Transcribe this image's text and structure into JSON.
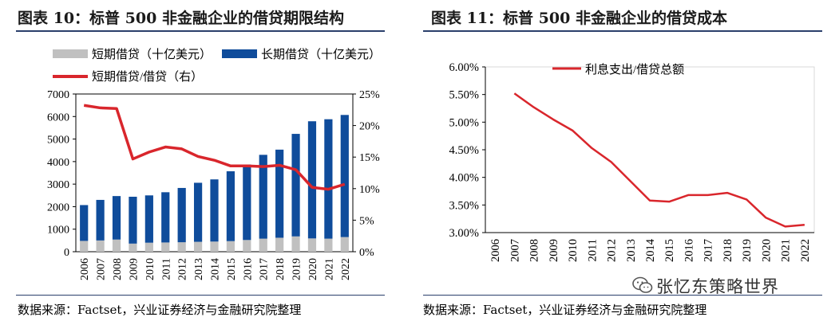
{
  "left": {
    "title": "图表 10：标普 500 非金融企业的借贷期限结构",
    "source": "数据来源：Factset，兴业证券经济与金融研究院整理"
  },
  "right": {
    "title": "图表 11：标普 500 非金融企业的借贷成本",
    "source": "数据来源：Factset，兴业证券经济与金融研究院整理"
  },
  "watermark": {
    "text": "张忆东策略世界",
    "icon": "wechat-icon"
  },
  "chart_data": [
    {
      "type": "bar",
      "stacked": true,
      "categories": [
        "2006",
        "2007",
        "2008",
        "2009",
        "2010",
        "2011",
        "2012",
        "2013",
        "2014",
        "2015",
        "2016",
        "2017",
        "2018",
        "2019",
        "2020",
        "2021",
        "2022"
      ],
      "series": [
        {
          "name": "短期借贷（十亿美元）",
          "color": "#c0c0c0",
          "values": [
            480,
            500,
            540,
            360,
            400,
            410,
            420,
            440,
            450,
            470,
            520,
            580,
            620,
            680,
            590,
            580,
            650
          ]
        },
        {
          "name": "长期借贷（十亿美元）",
          "color": "#0f4c9b",
          "values": [
            1590,
            1800,
            1930,
            2080,
            2100,
            2230,
            2410,
            2620,
            2760,
            3100,
            3350,
            3720,
            3910,
            4550,
            5200,
            5300,
            5420
          ]
        },
        {
          "name": "短期借贷/借贷（右）",
          "axis": "right",
          "type": "line",
          "color": "#d9262c",
          "values": [
            23.2,
            22.8,
            22.7,
            14.7,
            15.8,
            16.6,
            16.3,
            15.1,
            14.5,
            13.6,
            13.6,
            13.5,
            13.7,
            13.0,
            10.2,
            9.9,
            10.7
          ]
        }
      ],
      "yticks": [
        "0",
        "1000",
        "2000",
        "3000",
        "4000",
        "5000",
        "6000",
        "7000"
      ],
      "ylim": [
        0,
        7000
      ],
      "y2ticks": [
        "0%",
        "5%",
        "10%",
        "15%",
        "20%",
        "25%"
      ],
      "y2lim": [
        0,
        25
      ],
      "legend": "top"
    },
    {
      "type": "line",
      "categories": [
        "2006",
        "2007",
        "2008",
        "2009",
        "2010",
        "2011",
        "2012",
        "2013",
        "2014",
        "2015",
        "2016",
        "2017",
        "2018",
        "2019",
        "2020",
        "2021",
        "2022"
      ],
      "series": [
        {
          "name": "利息支出/借贷总额",
          "color": "#d9262c",
          "values": [
            null,
            5.52,
            5.27,
            5.05,
            4.85,
            4.53,
            4.28,
            3.93,
            3.58,
            3.56,
            3.68,
            3.68,
            3.72,
            3.6,
            3.27,
            3.11,
            3.14
          ]
        }
      ],
      "yticks": [
        "3.00%",
        "3.50%",
        "4.00%",
        "4.50%",
        "5.00%",
        "5.50%",
        "6.00%"
      ],
      "ylim": [
        3.0,
        6.0
      ],
      "legend": "top"
    }
  ]
}
